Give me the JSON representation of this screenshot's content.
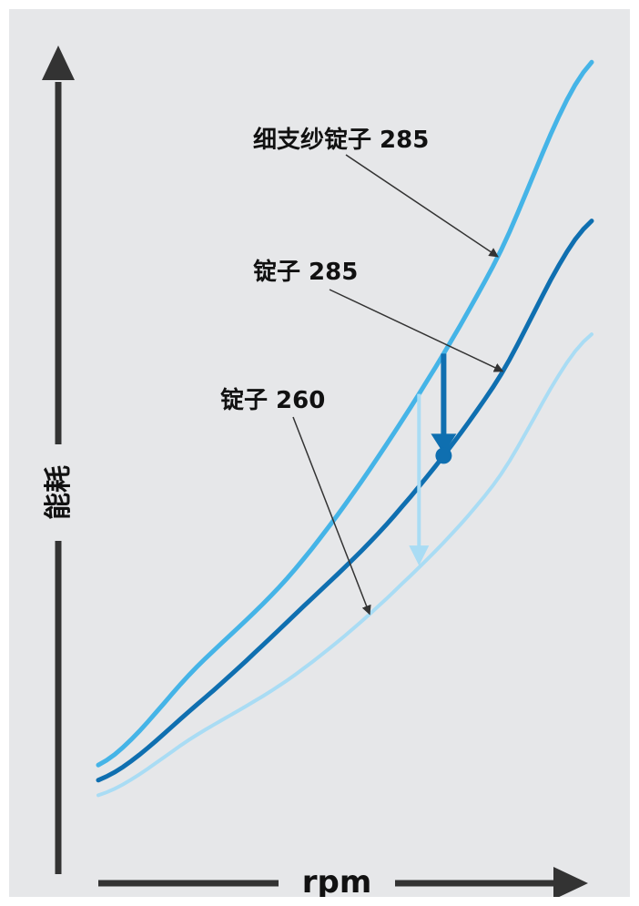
{
  "chart_data": {
    "type": "line",
    "title": "",
    "xlabel": "rpm",
    "ylabel": "能耗",
    "grid": false,
    "legend": "none",
    "xlim": [
      0,
      100
    ],
    "ylim": [
      0,
      100
    ],
    "series": [
      {
        "name": "细支纱锭子 285",
        "color": "#45b4e7",
        "width": 5,
        "x": [
          0,
          20,
          40,
          60,
          80,
          100
        ],
        "y": [
          6,
          19,
          32,
          50,
          72,
          99
        ]
      },
      {
        "name": "锭子 285",
        "color": "#0f6fb0",
        "width": 5,
        "x": [
          0,
          20,
          40,
          60,
          80,
          100
        ],
        "y": [
          4,
          14,
          26,
          39,
          56,
          78
        ]
      },
      {
        "name": "锭子 260",
        "color": "#a9dcf4",
        "width": 4,
        "x": [
          0,
          20,
          40,
          60,
          80,
          100
        ],
        "y": [
          2,
          10,
          18,
          29,
          43,
          63
        ]
      }
    ],
    "arrows": [
      {
        "from_series": 0,
        "to_series": 1,
        "x": 70,
        "color": "#0f6fb0"
      },
      {
        "from_series": 0,
        "to_series": 2,
        "x": 65,
        "color": "#a9dcf4"
      }
    ],
    "annotations": [
      {
        "text": "细支纱锭子 285",
        "series": 0,
        "x": 81
      },
      {
        "text": "锭子 285",
        "series": 1,
        "x": 82
      },
      {
        "text": "锭子 260",
        "series": 2,
        "x": 55
      }
    ]
  }
}
